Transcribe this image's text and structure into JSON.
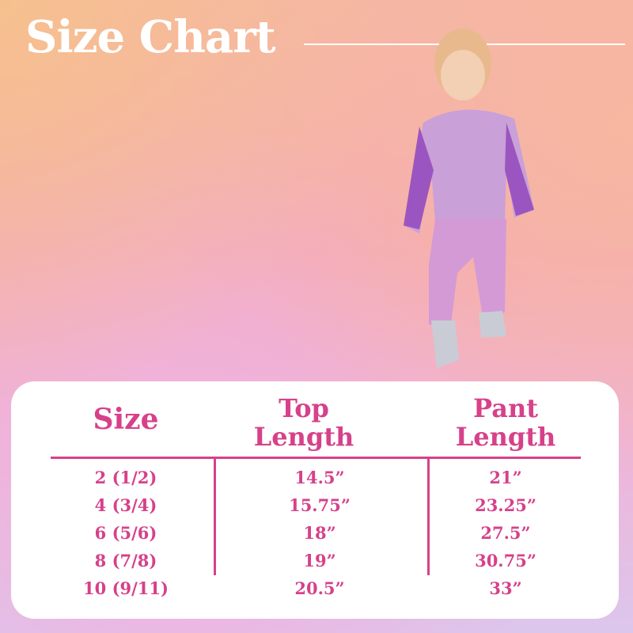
{
  "title": "Size Chart",
  "colors": {
    "accent": "#d6418a",
    "card": "#ffffff",
    "title": "#ffffff"
  },
  "image": {
    "subject": "child-model-photo"
  },
  "table": {
    "headers": [
      "Size",
      "Top Length",
      "Pant Length"
    ],
    "sizes": [
      "2 (1/2)",
      "4 (3/4)",
      "6 (5/6)",
      "8 (7/8)",
      "10 (9/11)"
    ],
    "top_length": [
      "14.5”",
      "15.75”",
      "18”",
      "19”",
      "20.5”"
    ],
    "pant_length": [
      "21”",
      "23.25”",
      "27.5”",
      "30.75”",
      "33”"
    ]
  }
}
